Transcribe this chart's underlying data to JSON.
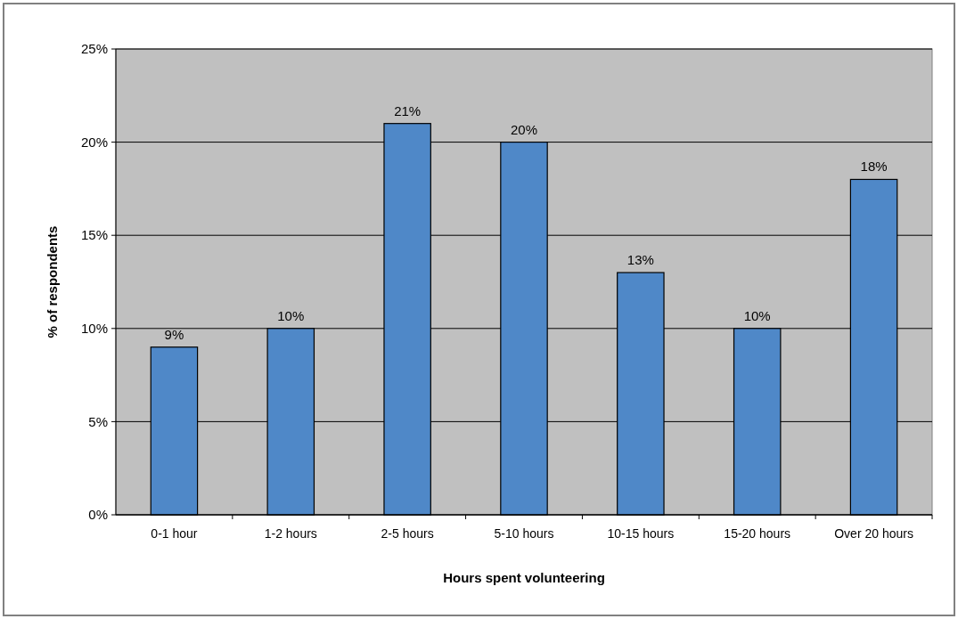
{
  "chart_data": {
    "type": "bar",
    "xlabel": "Hours spent volunteering",
    "ylabel": "% of respondents",
    "categories": [
      "0-1 hour",
      "1-2 hours",
      "2-5 hours",
      "5-10 hours",
      "10-15 hours",
      "15-20 hours",
      "Over 20 hours"
    ],
    "values": [
      9,
      10,
      21,
      20,
      13,
      10,
      18
    ],
    "value_labels": [
      "9%",
      "10%",
      "21%",
      "20%",
      "13%",
      "10%",
      "18%"
    ],
    "color": "#4f88c8",
    "ylim": [
      0,
      25
    ],
    "yticks": [
      {
        "value": 0,
        "label": "0%"
      },
      {
        "value": 5,
        "label": "5%"
      },
      {
        "value": 10,
        "label": "10%"
      },
      {
        "value": 15,
        "label": "15%"
      },
      {
        "value": 20,
        "label": "20%"
      },
      {
        "value": 25,
        "label": "25%"
      }
    ],
    "grid": "y"
  }
}
